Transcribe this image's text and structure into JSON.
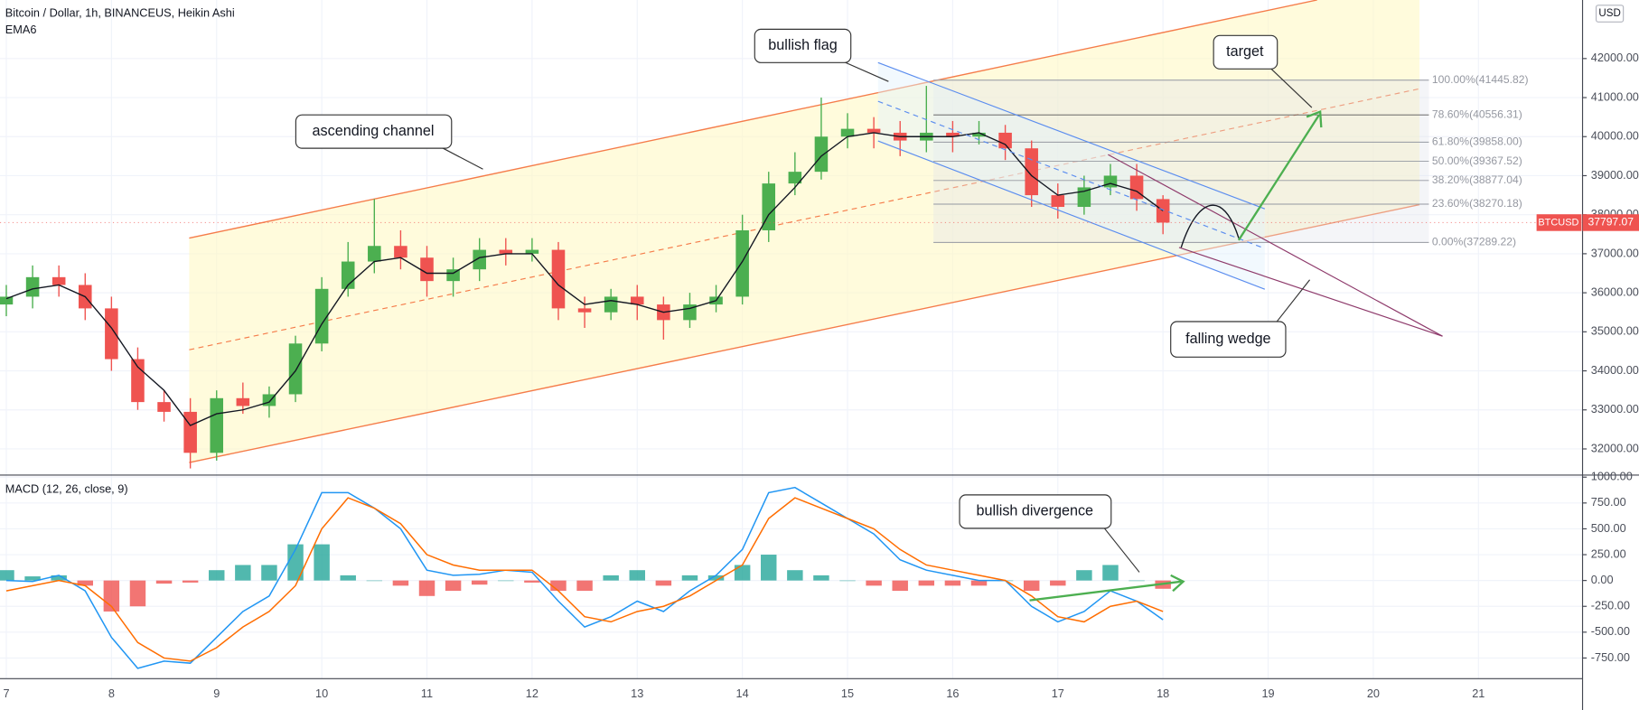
{
  "chart_data": [
    {
      "type": "candlestick",
      "title": "Bitcoin / Dollar, 1h, BINANCEUS, Heikin Ashi",
      "symbol": "BTCUSD",
      "currency": "USD",
      "x": [
        7,
        7.25,
        7.5,
        7.75,
        8,
        8.25,
        8.5,
        8.75,
        9,
        9.25,
        9.5,
        9.75,
        10,
        10.25,
        10.5,
        10.75,
        11,
        11.25,
        11.5,
        11.75,
        12,
        12.25,
        12.5,
        12.75,
        13,
        13.25,
        13.5,
        13.75,
        14,
        14.25,
        14.5,
        14.75,
        15,
        15.25,
        15.5,
        15.75,
        16,
        16.25,
        16.5,
        16.75,
        17,
        17.25,
        17.5,
        17.75,
        18
      ],
      "open": [
        35700,
        35900,
        36400,
        36200,
        35600,
        34300,
        33200,
        32950,
        31900,
        33300,
        33100,
        33400,
        34700,
        36100,
        36800,
        37200,
        36900,
        36300,
        36600,
        37100,
        37000,
        37100,
        35600,
        35500,
        35900,
        35700,
        35300,
        35700,
        35900,
        37600,
        38800,
        39100,
        40000,
        40200,
        40100,
        39900,
        40100,
        40000,
        40100,
        39700,
        38500,
        38200,
        38700,
        39000,
        38400
      ],
      "high": [
        36200,
        36700,
        36700,
        36500,
        35900,
        34600,
        33500,
        33300,
        33500,
        33700,
        33600,
        34900,
        36400,
        37300,
        38400,
        37600,
        37200,
        36900,
        37400,
        37400,
        37400,
        37300,
        35900,
        36100,
        36200,
        35900,
        36000,
        36200,
        38000,
        39100,
        39600,
        41000,
        40600,
        40500,
        40400,
        41300,
        40400,
        40400,
        40300,
        39900,
        38800,
        39000,
        39300,
        39300,
        38500
      ],
      "low": [
        35400,
        35600,
        35900,
        35300,
        34000,
        33000,
        32700,
        31500,
        31700,
        32900,
        32800,
        33200,
        34500,
        35900,
        36500,
        36600,
        35900,
        35900,
        36300,
        36700,
        36800,
        35300,
        35100,
        35300,
        35300,
        34800,
        35100,
        35500,
        35700,
        37300,
        38500,
        38900,
        39700,
        39700,
        39500,
        39600,
        39600,
        39800,
        39400,
        38200,
        37900,
        38000,
        38500,
        38100,
        37500
      ],
      "close": [
        35900,
        36400,
        36200,
        35600,
        34300,
        33200,
        32950,
        31900,
        33300,
        33100,
        33400,
        34700,
        36100,
        36800,
        37200,
        36900,
        36300,
        36600,
        37100,
        37000,
        37100,
        35600,
        35500,
        35900,
        35700,
        35300,
        35700,
        35900,
        37600,
        38800,
        39100,
        40000,
        40200,
        40100,
        39900,
        40100,
        40000,
        40100,
        39700,
        38500,
        38200,
        38700,
        39000,
        38400,
        37797.07
      ],
      "up_color": "#4caf50",
      "down_color": "#ef5350",
      "ema": {
        "name": "EMA6",
        "color": "#131722",
        "values": [
          35850,
          36100,
          36200,
          35900,
          35100,
          34100,
          33500,
          32600,
          32900,
          33000,
          33200,
          34000,
          35200,
          36200,
          36800,
          36900,
          36500,
          36500,
          36900,
          37000,
          37000,
          36200,
          35700,
          35800,
          35700,
          35500,
          35600,
          35800,
          36800,
          38000,
          38700,
          39500,
          40000,
          40100,
          40000,
          40000,
          40000,
          40100,
          39800,
          39000,
          38500,
          38600,
          38800,
          38600,
          38100
        ]
      },
      "xlim": [
        6.94,
        21.99
      ],
      "ylim": [
        31330,
        43500
      ],
      "xticks": [
        7,
        8,
        9,
        10,
        11,
        12,
        13,
        14,
        15,
        16,
        17,
        18,
        19,
        20,
        21
      ],
      "yticks": [
        {
          "value": 32000,
          "label": "32000.00"
        },
        {
          "value": 33000,
          "label": "33000.00"
        },
        {
          "value": 34000,
          "label": "34000.00"
        },
        {
          "value": 35000,
          "label": "35000.00"
        },
        {
          "value": 36000,
          "label": "36000.00"
        },
        {
          "value": 37000,
          "label": "37000.00"
        },
        {
          "value": 38000,
          "label": "38000.00"
        },
        {
          "value": 39000,
          "label": "39000.00"
        },
        {
          "value": 40000,
          "label": "40000.00"
        },
        {
          "value": 41000,
          "label": "41000.00"
        },
        {
          "value": 42000,
          "label": "42000.00"
        }
      ],
      "grid": true,
      "fib_color": "#9598a1",
      "fib": [
        {
          "value": 41445.82,
          "label": "100.00%(41445.82)"
        },
        {
          "value": 40556.31,
          "label": "78.60%(40556.31)"
        },
        {
          "value": 39858.0,
          "label": "61.80%(39858.00)"
        },
        {
          "value": 39367.52,
          "label": "50.00%(39367.52)"
        },
        {
          "value": 38877.04,
          "label": "38.20%(38877.04)"
        },
        {
          "value": 38270.18,
          "label": "23.60%(38270.18)"
        },
        {
          "value": 37289.22,
          "label": "0.00%(37289.22)"
        }
      ],
      "annotations": [
        "bullish flag",
        "ascending channel",
        "target",
        "falling wedge"
      ]
    },
    {
      "type": "macd",
      "title": "MACD (12, 26, close, 9)",
      "x": [
        7,
        7.25,
        7.5,
        7.75,
        8,
        8.25,
        8.5,
        8.75,
        9,
        9.25,
        9.5,
        9.75,
        10,
        10.25,
        10.5,
        10.75,
        11,
        11.25,
        11.5,
        11.75,
        12,
        12.25,
        12.5,
        12.75,
        13,
        13.25,
        13.5,
        13.75,
        14,
        14.25,
        14.5,
        14.75,
        15,
        15.25,
        15.5,
        15.75,
        16,
        16.25,
        16.5,
        16.75,
        17,
        17.25,
        17.5,
        17.75,
        18
      ],
      "lines": [
        {
          "color": "#2196f3",
          "values": [
            0,
            -10,
            50,
            -100,
            -550,
            -850,
            -780,
            -800,
            -550,
            -300,
            -150,
            300,
            850,
            850,
            700,
            500,
            100,
            50,
            60,
            100,
            80,
            -200,
            -450,
            -350,
            -200,
            -300,
            -100,
            50,
            300,
            850,
            900,
            750,
            600,
            450,
            200,
            100,
            50,
            0,
            0,
            -250,
            -400,
            -300,
            -100,
            -200,
            -380
          ]
        },
        {
          "color": "#ff6d00",
          "values": [
            -100,
            -50,
            0,
            -50,
            -250,
            -600,
            -750,
            -780,
            -650,
            -450,
            -300,
            -50,
            500,
            800,
            700,
            550,
            250,
            150,
            100,
            100,
            100,
            -100,
            -350,
            -400,
            -300,
            -250,
            -150,
            0,
            150,
            600,
            800,
            700,
            600,
            500,
            300,
            150,
            100,
            50,
            0,
            -150,
            -350,
            -400,
            -250,
            -200,
            -300
          ]
        }
      ],
      "histogram": {
        "pos_color": "#26a69a",
        "neg_color": "#ef5350",
        "values": [
          100,
          40,
          50,
          -50,
          -300,
          -250,
          -30,
          -20,
          100,
          150,
          150,
          350,
          350,
          50,
          0,
          -50,
          -150,
          -100,
          -40,
          0,
          -20,
          -100,
          -100,
          50,
          100,
          -50,
          50,
          50,
          150,
          250,
          100,
          50,
          0,
          -50,
          -100,
          -50,
          -50,
          -50,
          0,
          -100,
          -50,
          100,
          150,
          0,
          -80
        ]
      },
      "ylim": [
        -950,
        1010
      ],
      "yticks": [
        {
          "value": -750,
          "label": "-750.00"
        },
        {
          "value": -500,
          "label": "-500.00"
        },
        {
          "value": -250,
          "label": "-250.00"
        },
        {
          "value": 0,
          "label": "0.00"
        },
        {
          "value": 250,
          "label": "250.00"
        },
        {
          "value": 500,
          "label": "500.00"
        },
        {
          "value": 750,
          "label": "750.00"
        },
        {
          "value": 1000,
          "label": "1000.00"
        }
      ],
      "grid": true,
      "annotations": [
        "bullish divergence"
      ]
    }
  ]
}
